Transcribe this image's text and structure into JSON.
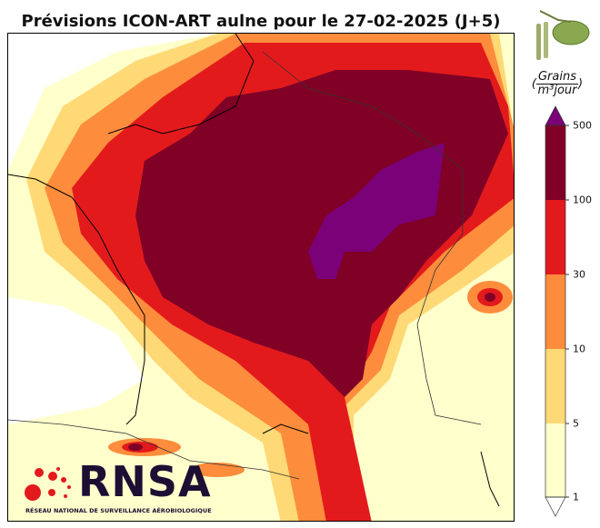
{
  "title": "Prévisions ICON-ART aulne pour le 27-02-2025 (J+5)",
  "unit": {
    "numerator": "Grains",
    "denominator": "m³jour",
    "open": "(",
    "close": ")"
  },
  "colorbar": {
    "ticks": [
      "500",
      "100",
      "30",
      "10",
      "5",
      "1"
    ],
    "bins": [
      {
        "range": "1-5",
        "color": "#ffffcc"
      },
      {
        "range": "5-10",
        "color": "#fed976"
      },
      {
        "range": "10-30",
        "color": "#fd8d3c"
      },
      {
        "range": "30-100",
        "color": "#e31a1c"
      },
      {
        "range": "100-500",
        "color": "#800026"
      },
      {
        "range": ">500",
        "color": "#7a0177"
      }
    ]
  },
  "logo": {
    "name": "RNSA",
    "subtitle": "RÉSEAU NATIONAL DE SURVEILLANCE AÉROBIOLOGIQUE"
  }
}
